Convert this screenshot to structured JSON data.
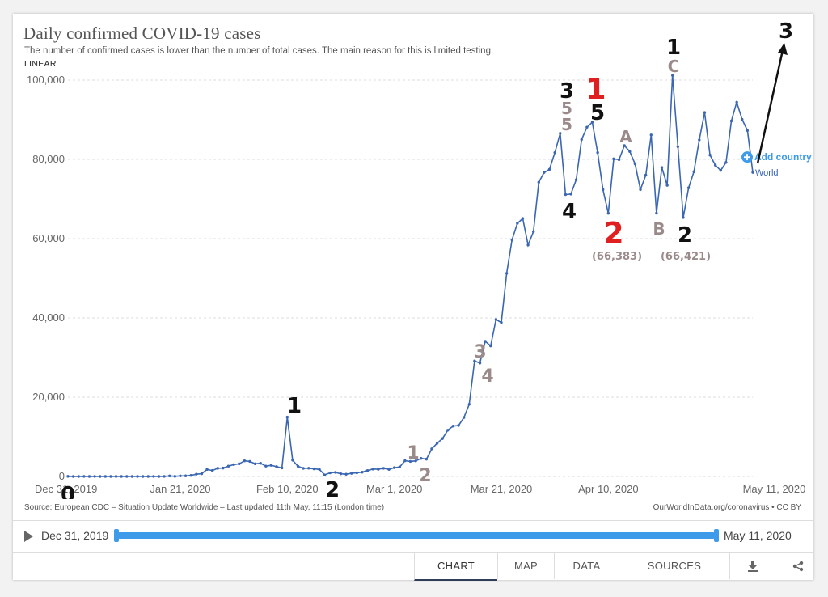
{
  "chart_data": {
    "type": "line",
    "title": "Daily confirmed COVID-19 cases",
    "subtitle": "The number of confirmed cases is lower than the number of total cases. The main reason for this is limited testing.",
    "scale_toggle": "LINEAR",
    "y_ticks": [
      "0",
      "20,000",
      "40,000",
      "60,000",
      "80,000",
      "100,000"
    ],
    "x_ticks": [
      "Dec 31, 2019",
      "Jan 21, 2020",
      "Feb 10, 2020",
      "Mar 1, 2020",
      "Mar 21, 2020",
      "Apr 10, 2020",
      "May 11, 2020"
    ],
    "ylim": [
      0,
      100000
    ],
    "series": [
      {
        "name": "World",
        "color": "#3a66b2",
        "values": [
          27,
          0,
          0,
          17,
          0,
          15,
          0,
          0,
          0,
          0,
          0,
          0,
          0,
          1,
          1,
          1,
          19,
          0,
          14,
          137,
          34,
          149,
          153,
          265,
          581,
          690,
          1765,
          1508,
          2069,
          2117,
          2604,
          3005,
          3192,
          3940,
          3796,
          3201,
          3323,
          2608,
          2810,
          2478,
          2151,
          14974,
          4104,
          2564,
          2047,
          2080,
          1921,
          1776,
          399,
          910,
          1028,
          679,
          567,
          790,
          919,
          1081,
          1501,
          1872,
          1807,
          2062,
          1778,
          2226,
          2383,
          3959,
          3790,
          3916,
          4548,
          4363,
          6967,
          8359,
          9555,
          11681,
          12708,
          12856,
          14866,
          18208,
          29146,
          28618,
          34092,
          32929,
          39600,
          38841,
          51239,
          59684,
          63867,
          65087,
          58402,
          61748,
          74239,
          76704,
          77474,
          81698,
          86576,
          71124,
          71241,
          74858,
          85017,
          88110,
          89369,
          81714,
          72393,
          66383,
          80132,
          79935,
          83470,
          81990,
          78862,
          72389,
          76023,
          86162,
          66421,
          77956,
          73450,
          101172,
          83204,
          65321,
          72813,
          76889,
          84913,
          91809,
          81083,
          78519,
          77211,
          79232,
          89696,
          94398,
          90085,
          87263,
          76697
        ]
      }
    ],
    "annotations": [
      {
        "text": "0",
        "color": "#111111"
      },
      {
        "text": "1",
        "color": "#111111"
      },
      {
        "text": "2",
        "color": "#111111"
      },
      {
        "text": "1",
        "color": "#9a8a8a"
      },
      {
        "text": "2",
        "color": "#9a8a8a"
      },
      {
        "text": "3",
        "color": "#9a8a8a"
      },
      {
        "text": "4",
        "color": "#9a8a8a"
      },
      {
        "text": "3",
        "color": "#111111"
      },
      {
        "text": "5",
        "color": "#9a8a8a"
      },
      {
        "text": "5",
        "color": "#9a8a8a"
      },
      {
        "text": "4",
        "color": "#111111"
      },
      {
        "text": "1",
        "color": "#e02020"
      },
      {
        "text": "5",
        "color": "#111111"
      },
      {
        "text": "2",
        "color": "#e02020"
      },
      {
        "text": "(66,383)",
        "color": "#9a8a8a"
      },
      {
        "text": "A",
        "color": "#9a8a8a"
      },
      {
        "text": "B",
        "color": "#9a8a8a"
      },
      {
        "text": "1",
        "color": "#111111"
      },
      {
        "text": "C",
        "color": "#9a8a8a"
      },
      {
        "text": "2",
        "color": "#111111"
      },
      {
        "text": "(66,421)",
        "color": "#9a8a8a"
      },
      {
        "text": "3",
        "color": "#111111"
      }
    ]
  },
  "add_country_label": "Add country",
  "series_end_label": "World",
  "source_text": "Source: European CDC – Situation Update Worldwide – Last updated 11th May, 11:15 (London time)",
  "credit_text": "OurWorldInData.org/coronavirus • CC BY",
  "timeline": {
    "start_label": "Dec 31, 2019",
    "end_label": "May 11, 2020",
    "range_start_fraction": 0,
    "range_end_fraction": 1
  },
  "tabs": [
    {
      "label": "CHART",
      "active": true
    },
    {
      "label": "MAP",
      "active": false
    },
    {
      "label": "DATA",
      "active": false
    },
    {
      "label": "SOURCES",
      "active": false
    }
  ],
  "icons": [
    "download-icon",
    "share-icon",
    "play-icon",
    "add-country-icon"
  ],
  "accent_color": "#3d9be9"
}
